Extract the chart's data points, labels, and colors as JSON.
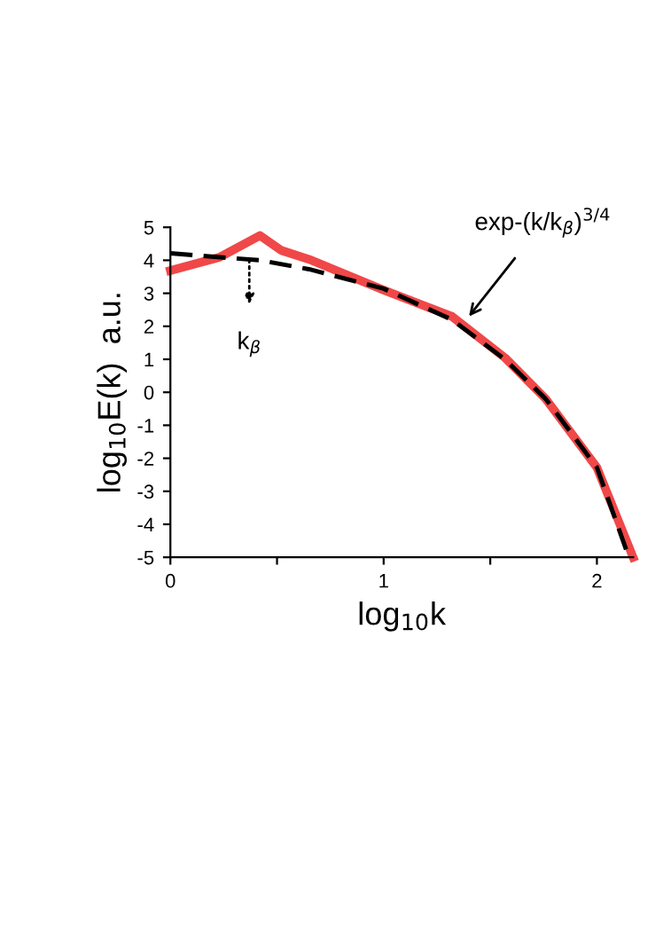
{
  "chart_data": {
    "type": "line",
    "xlabel": "log$_{10}$k",
    "ylabel": "log$_{10}$E(k)  a.u.",
    "xlim": [
      0,
      2.17
    ],
    "ylim": [
      -5,
      5
    ],
    "xticks": [
      0,
      {
        "value": 0.5,
        "label": null
      },
      1,
      {
        "value": 1.5,
        "label": null
      },
      2
    ],
    "yticks": [
      -5,
      -4,
      -3,
      -2,
      -1,
      0,
      1,
      2,
      3,
      4,
      5
    ],
    "grid": false,
    "legend": false,
    "series": [
      {
        "color": "#f04848",
        "line_style": "solid",
        "x": [
          0,
          0.23,
          0.42,
          0.52,
          0.65,
          1.0,
          1.32,
          1.57,
          1.76,
          2.0,
          2.17
        ],
        "values": [
          3.69,
          4.09,
          4.75,
          4.3,
          4.03,
          3.1,
          2.3,
          1.04,
          -0.2,
          -2.28,
          -5
        ]
      },
      {
        "color": "#000000",
        "line_style": "dashed",
        "x": [
          0,
          0.42,
          0.65,
          1.0,
          1.32,
          1.57,
          1.76,
          2.0,
          2.15
        ],
        "values": [
          4.21,
          4.0,
          3.73,
          3.14,
          2.2,
          0.99,
          -0.2,
          -2.28,
          -5
        ]
      }
    ],
    "annotations": [
      {
        "text": "k$_{β}$",
        "x": 0.37,
        "y": 4.0
      },
      {
        "text": "exp-(k/k$_{β}$)$^{3/4}$",
        "x": 1.4,
        "y": 2.3
      }
    ]
  }
}
